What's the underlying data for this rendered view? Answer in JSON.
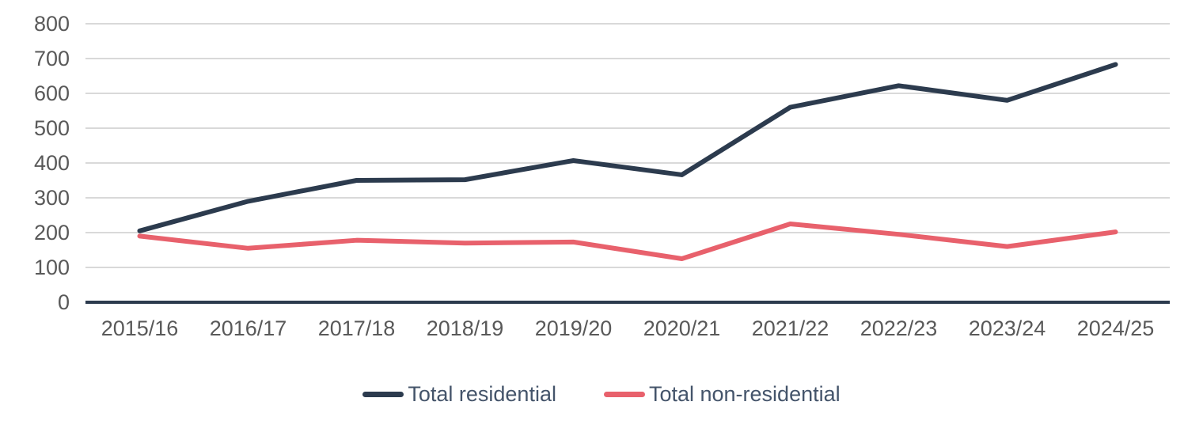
{
  "chart_data": {
    "type": "line",
    "title": "",
    "xlabel": "",
    "ylabel": "",
    "categories": [
      "2015/16",
      "2016/17",
      "2017/18",
      "2018/19",
      "2019/20",
      "2020/21",
      "2021/22",
      "2022/23",
      "2023/24",
      "2024/25"
    ],
    "series": [
      {
        "name": "Total residential",
        "color": "#2C3B4E",
        "values": [
          205,
          290,
          350,
          352,
          407,
          366,
          560,
          622,
          580,
          683
        ]
      },
      {
        "name": "Total non-residential",
        "color": "#E8616C",
        "values": [
          190,
          155,
          178,
          170,
          173,
          125,
          225,
          195,
          160,
          202
        ]
      }
    ],
    "ylim": [
      0,
      800
    ],
    "ytick_step": 100,
    "yticks": [
      "0",
      "100",
      "200",
      "300",
      "400",
      "500",
      "600",
      "700",
      "800"
    ],
    "grid": true,
    "legend_position": "bottom-center"
  },
  "colors": {
    "background": "#FFFFFF",
    "gridline": "#D9D9D9",
    "axis_line": "#2C3B4E",
    "tick_label": "#595959",
    "legend_text": "#44546A"
  }
}
